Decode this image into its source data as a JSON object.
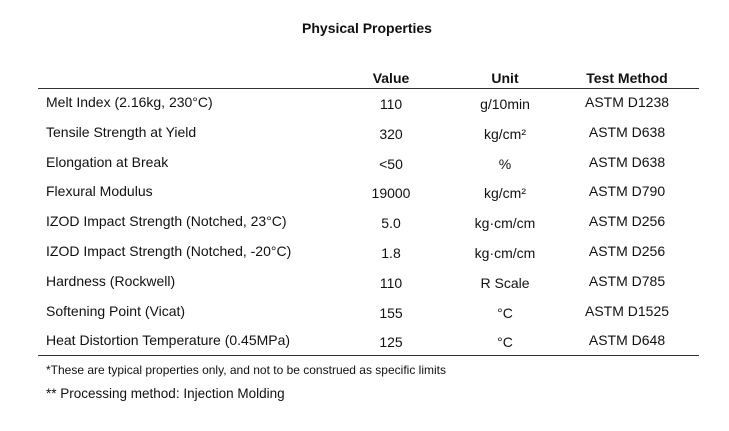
{
  "title": "Physical Properties",
  "table": {
    "headers": [
      "",
      "Value",
      "Unit",
      "Test Method"
    ],
    "rows": [
      [
        "Melt Index (2.16kg, 230°C)",
        "110",
        "g/10min",
        "ASTM D1238"
      ],
      [
        "Tensile Strength at Yield",
        "320",
        "kg/cm²",
        "ASTM D638"
      ],
      [
        "Elongation at Break",
        "<50",
        "%",
        "ASTM D638"
      ],
      [
        "Flexural Modulus",
        "19000",
        "kg/cm²",
        "ASTM D790"
      ],
      [
        "IZOD Impact Strength (Notched, 23°C)",
        "5.0",
        "kg·cm/cm",
        "ASTM D256"
      ],
      [
        "IZOD Impact Strength (Notched, -20°C)",
        "1.8",
        "kg·cm/cm",
        "ASTM D256"
      ],
      [
        "Hardness (Rockwell)",
        "110",
        "R Scale",
        "ASTM D785"
      ],
      [
        "Softening Point (Vicat)",
        "155",
        "°C",
        "ASTM D1525"
      ],
      [
        "Heat Distortion Temperature (0.45MPa)",
        "125",
        "°C",
        "ASTM D648"
      ]
    ]
  },
  "notes": [
    "*These are typical properties only, and not to be construed as specific limits",
    "** Processing method: Injection Molding"
  ]
}
